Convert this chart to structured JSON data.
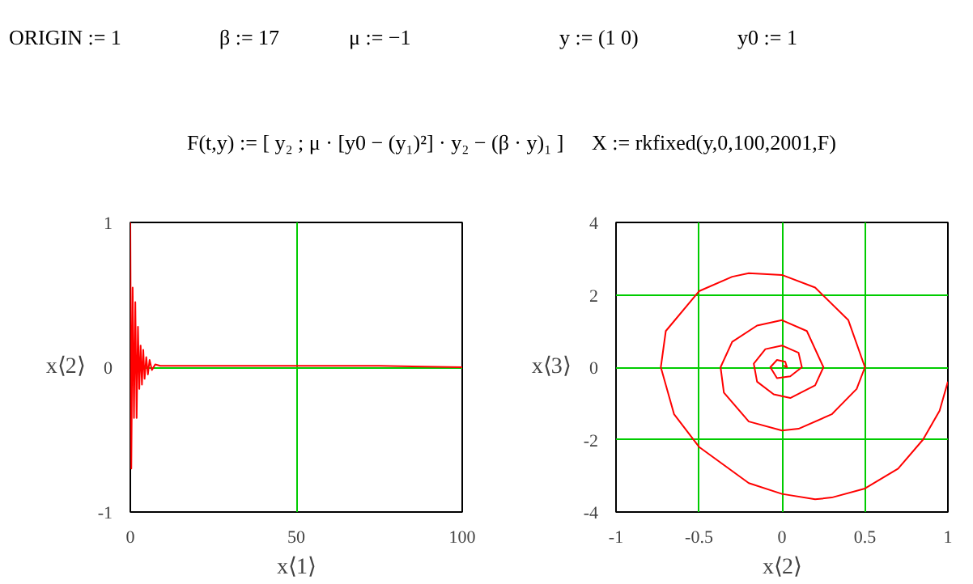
{
  "chart_data": [
    {
      "type": "other",
      "annotations": [
        "ORIGIN := 1",
        "β := 17",
        "μ := −1",
        "y := (1 0)",
        "y0 := 1",
        "F(t,y) := [ y₂ ; μ · [y0 − (y₁)²] · y₂ − (β · y)₁ ]",
        "X := rkfixed(y,0,100,2001,F)"
      ]
    },
    {
      "type": "line",
      "xlabel": "x⟨1⟩",
      "ylabel": "x⟨2⟩",
      "xlim": [
        0,
        100
      ],
      "ylim": [
        -1,
        1
      ],
      "xticks": [
        0,
        50,
        100
      ],
      "yticks": [
        -1,
        0,
        1
      ],
      "grid": true,
      "series": [
        {
          "color": "#ff0000",
          "x": [
            0,
            0.3,
            0.7,
            1.1,
            1.5,
            1.9,
            2.3,
            2.7,
            3.1,
            3.5,
            3.9,
            4.3,
            4.8,
            5.3,
            5.8,
            6.5,
            7.5,
            9,
            20,
            50,
            75,
            100
          ],
          "values": [
            1,
            -0.7,
            0.55,
            -0.35,
            0.45,
            -0.35,
            0.28,
            -0.15,
            0.15,
            -0.12,
            0.12,
            -0.08,
            0.07,
            -0.05,
            0.05,
            -0.02,
            0.02,
            0.01,
            0.01,
            0.01,
            0.01,
            0
          ]
        }
      ]
    },
    {
      "type": "line",
      "xlabel": "x⟨2⟩",
      "ylabel": "x⟨3⟩",
      "xlim": [
        -1,
        1
      ],
      "ylim": [
        -4,
        4
      ],
      "xticks": [
        -1,
        -0.5,
        0,
        0.5,
        1
      ],
      "yticks": [
        -4,
        -2,
        0,
        2,
        4
      ],
      "grid": true,
      "series": [
        {
          "color": "#ff0000",
          "x": [
            1,
            0.95,
            0.85,
            0.7,
            0.5,
            0.3,
            0.2,
            0,
            -0.2,
            -0.5,
            -0.65,
            -0.73,
            -0.7,
            -0.5,
            -0.3,
            -0.2,
            0,
            0.2,
            0.4,
            0.5,
            0.45,
            0.3,
            0.1,
            0,
            -0.2,
            -0.35,
            -0.37,
            -0.3,
            -0.15,
            0,
            0.15,
            0.25,
            0.2,
            0.05,
            -0.05,
            -0.15,
            -0.17,
            -0.1,
            0,
            0.1,
            0.12,
            0.05,
            -0.03,
            -0.07,
            -0.03,
            0.02,
            0.03,
            0.01
          ],
          "values": [
            -0.4,
            -1.2,
            -2,
            -2.8,
            -3.35,
            -3.6,
            -3.65,
            -3.5,
            -3.2,
            -2.2,
            -1.3,
            0,
            1,
            2.1,
            2.5,
            2.6,
            2.55,
            2.2,
            1.3,
            0,
            -0.6,
            -1.3,
            -1.7,
            -1.75,
            -1.5,
            -0.7,
            0,
            0.7,
            1.15,
            1.3,
            1,
            0,
            -0.5,
            -0.85,
            -0.75,
            -0.4,
            0.1,
            0.5,
            0.6,
            0.4,
            0,
            -0.25,
            -0.3,
            0,
            0.2,
            0.15,
            0,
            0.05
          ]
        }
      ]
    }
  ]
}
